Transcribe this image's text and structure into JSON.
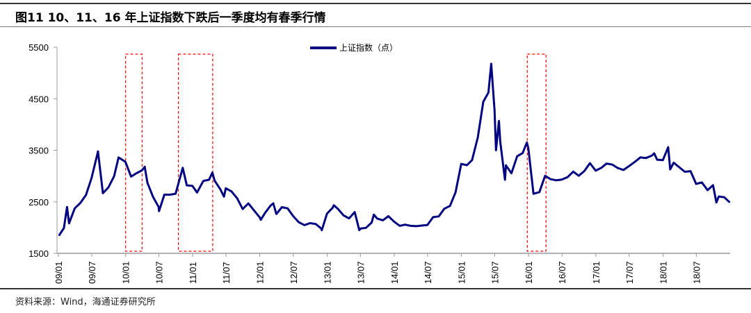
{
  "title": "图11 10、11、16 年上证指数下跌后一季度均有春季行情",
  "source": "资料来源：Wind，海通证券研究所",
  "chart_data": {
    "type": "line",
    "title": "",
    "xlabel": "",
    "ylabel": "",
    "ylim": [
      1500,
      5500
    ],
    "yticks": [
      1500,
      2500,
      3500,
      4500,
      5500
    ],
    "xlim": [
      "2009-01-01",
      "2019-01-01"
    ],
    "xticks": [
      {
        "date": "2009-01-01",
        "label": "09/01"
      },
      {
        "date": "2009-07-01",
        "label": "09/07"
      },
      {
        "date": "2010-01-01",
        "label": "10/01"
      },
      {
        "date": "2010-07-01",
        "label": "10/07"
      },
      {
        "date": "2011-01-01",
        "label": "11/01"
      },
      {
        "date": "2011-07-01",
        "label": "11/07"
      },
      {
        "date": "2012-01-01",
        "label": "12/01"
      },
      {
        "date": "2012-07-01",
        "label": "12/07"
      },
      {
        "date": "2013-01-01",
        "label": "13/01"
      },
      {
        "date": "2013-07-01",
        "label": "13/07"
      },
      {
        "date": "2014-01-01",
        "label": "14/01"
      },
      {
        "date": "2014-07-01",
        "label": "14/07"
      },
      {
        "date": "2015-01-01",
        "label": "15/01"
      },
      {
        "date": "2015-07-01",
        "label": "15/07"
      },
      {
        "date": "2016-01-01",
        "label": "16/01"
      },
      {
        "date": "2016-07-01",
        "label": "16/07"
      },
      {
        "date": "2017-01-01",
        "label": "17/01"
      },
      {
        "date": "2017-07-01",
        "label": "17/07"
      },
      {
        "date": "2018-01-01",
        "label": "18/01"
      },
      {
        "date": "2018-07-01",
        "label": "18/07"
      }
    ],
    "legend": {
      "position": "top-center"
    },
    "grid": false,
    "series": [
      {
        "name": "上证指数（点）",
        "color": "#000080",
        "points": [
          [
            "2009-01-05",
            1850
          ],
          [
            "2009-01-31",
            1990
          ],
          [
            "2009-02-17",
            2400
          ],
          [
            "2009-02-28",
            2082
          ],
          [
            "2009-03-31",
            2373
          ],
          [
            "2009-04-30",
            2477
          ],
          [
            "2009-05-31",
            2633
          ],
          [
            "2009-06-30",
            2959
          ],
          [
            "2009-07-31",
            3412
          ],
          [
            "2009-08-04",
            3478
          ],
          [
            "2009-08-31",
            2667
          ],
          [
            "2009-09-30",
            2779
          ],
          [
            "2009-10-31",
            2996
          ],
          [
            "2009-11-24",
            3360
          ],
          [
            "2009-12-31",
            3277
          ],
          [
            "2010-01-31",
            2989
          ],
          [
            "2010-02-28",
            3051
          ],
          [
            "2010-03-31",
            3109
          ],
          [
            "2010-04-15",
            3180
          ],
          [
            "2010-04-30",
            2870
          ],
          [
            "2010-05-31",
            2592
          ],
          [
            "2010-06-30",
            2398
          ],
          [
            "2010-07-02",
            2320
          ],
          [
            "2010-07-31",
            2638
          ],
          [
            "2010-08-31",
            2638
          ],
          [
            "2010-09-30",
            2656
          ],
          [
            "2010-11-08",
            3159
          ],
          [
            "2010-11-30",
            2820
          ],
          [
            "2010-12-31",
            2808
          ],
          [
            "2011-01-25",
            2680
          ],
          [
            "2011-02-28",
            2905
          ],
          [
            "2011-03-31",
            2928
          ],
          [
            "2011-04-18",
            3067
          ],
          [
            "2011-04-30",
            2911
          ],
          [
            "2011-05-31",
            2743
          ],
          [
            "2011-06-20",
            2600
          ],
          [
            "2011-06-30",
            2762
          ],
          [
            "2011-07-31",
            2701
          ],
          [
            "2011-08-31",
            2567
          ],
          [
            "2011-09-30",
            2359
          ],
          [
            "2011-10-31",
            2468
          ],
          [
            "2011-11-30",
            2333
          ],
          [
            "2011-12-31",
            2199
          ],
          [
            "2012-01-06",
            2150
          ],
          [
            "2012-01-31",
            2292
          ],
          [
            "2012-02-29",
            2428
          ],
          [
            "2012-03-14",
            2470
          ],
          [
            "2012-03-31",
            2262
          ],
          [
            "2012-04-30",
            2396
          ],
          [
            "2012-05-31",
            2373
          ],
          [
            "2012-06-30",
            2225
          ],
          [
            "2012-07-31",
            2103
          ],
          [
            "2012-08-31",
            2047
          ],
          [
            "2012-09-30",
            2086
          ],
          [
            "2012-10-31",
            2069
          ],
          [
            "2012-11-30",
            1980
          ],
          [
            "2012-12-03",
            1949
          ],
          [
            "2012-12-31",
            2269
          ],
          [
            "2013-01-31",
            2385
          ],
          [
            "2013-02-06",
            2434
          ],
          [
            "2013-02-28",
            2365
          ],
          [
            "2013-03-31",
            2237
          ],
          [
            "2013-04-30",
            2178
          ],
          [
            "2013-05-31",
            2300
          ],
          [
            "2013-06-25",
            1950
          ],
          [
            "2013-06-30",
            1979
          ],
          [
            "2013-07-31",
            1994
          ],
          [
            "2013-08-31",
            2098
          ],
          [
            "2013-09-12",
            2250
          ],
          [
            "2013-09-30",
            2175
          ],
          [
            "2013-10-31",
            2141
          ],
          [
            "2013-11-30",
            2220
          ],
          [
            "2013-12-31",
            2116
          ],
          [
            "2014-01-31",
            2033
          ],
          [
            "2014-02-28",
            2056
          ],
          [
            "2014-03-31",
            2033
          ],
          [
            "2014-04-30",
            2026
          ],
          [
            "2014-05-31",
            2039
          ],
          [
            "2014-06-30",
            2048
          ],
          [
            "2014-07-31",
            2202
          ],
          [
            "2014-08-31",
            2217
          ],
          [
            "2014-09-30",
            2364
          ],
          [
            "2014-10-31",
            2420
          ],
          [
            "2014-11-30",
            2683
          ],
          [
            "2014-12-31",
            3235
          ],
          [
            "2015-01-31",
            3210
          ],
          [
            "2015-02-28",
            3310
          ],
          [
            "2015-03-31",
            3748
          ],
          [
            "2015-04-30",
            4442
          ],
          [
            "2015-05-28",
            4620
          ],
          [
            "2015-06-12",
            5178
          ],
          [
            "2015-06-30",
            4277
          ],
          [
            "2015-07-08",
            3500
          ],
          [
            "2015-07-24",
            4070
          ],
          [
            "2015-07-31",
            3664
          ],
          [
            "2015-08-26",
            2927
          ],
          [
            "2015-08-31",
            3206
          ],
          [
            "2015-09-30",
            3053
          ],
          [
            "2015-10-31",
            3383
          ],
          [
            "2015-11-30",
            3445
          ],
          [
            "2015-12-23",
            3651
          ],
          [
            "2015-12-31",
            3539
          ],
          [
            "2016-01-28",
            2656
          ],
          [
            "2016-02-29",
            2688
          ],
          [
            "2016-03-31",
            3004
          ],
          [
            "2016-04-30",
            2938
          ],
          [
            "2016-05-31",
            2917
          ],
          [
            "2016-06-30",
            2930
          ],
          [
            "2016-07-31",
            2979
          ],
          [
            "2016-08-31",
            3085
          ],
          [
            "2016-09-30",
            3005
          ],
          [
            "2016-10-31",
            3100
          ],
          [
            "2016-11-30",
            3250
          ],
          [
            "2016-12-31",
            3104
          ],
          [
            "2017-01-31",
            3159
          ],
          [
            "2017-02-28",
            3242
          ],
          [
            "2017-03-31",
            3223
          ],
          [
            "2017-04-30",
            3155
          ],
          [
            "2017-05-31",
            3117
          ],
          [
            "2017-06-30",
            3192
          ],
          [
            "2017-07-31",
            3273
          ],
          [
            "2017-08-31",
            3361
          ],
          [
            "2017-09-30",
            3349
          ],
          [
            "2017-10-31",
            3393
          ],
          [
            "2017-11-14",
            3440
          ],
          [
            "2017-11-30",
            3317
          ],
          [
            "2017-12-31",
            3307
          ],
          [
            "2018-01-29",
            3559
          ],
          [
            "2018-02-09",
            3130
          ],
          [
            "2018-02-28",
            3259
          ],
          [
            "2018-03-31",
            3169
          ],
          [
            "2018-04-30",
            3082
          ],
          [
            "2018-05-31",
            3095
          ],
          [
            "2018-06-30",
            2847
          ],
          [
            "2018-07-31",
            2876
          ],
          [
            "2018-08-31",
            2725
          ],
          [
            "2018-09-30",
            2821
          ],
          [
            "2018-10-18",
            2486
          ],
          [
            "2018-10-31",
            2603
          ],
          [
            "2018-11-30",
            2588
          ],
          [
            "2018-12-28",
            2494
          ]
        ]
      }
    ],
    "annotations": [
      {
        "type": "dashed-box",
        "color": "#ff0000",
        "from": "2010-01-01",
        "to": "2010-04-01",
        "ymin": 1540,
        "ymax": 5365
      },
      {
        "type": "dashed-box",
        "color": "#ff0000",
        "from": "2010-10-15",
        "to": "2011-04-20",
        "ymin": 1540,
        "ymax": 5365
      },
      {
        "type": "dashed-box",
        "color": "#ff0000",
        "from": "2015-12-25",
        "to": "2016-04-05",
        "ymin": 1540,
        "ymax": 5365
      }
    ]
  }
}
